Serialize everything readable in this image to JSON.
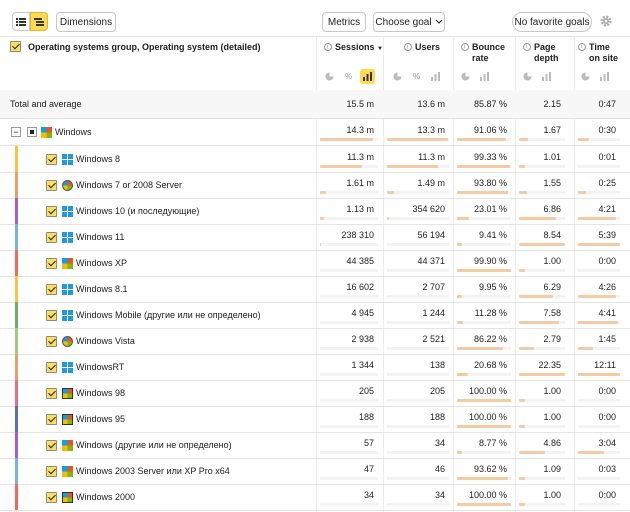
{
  "toolbar": {
    "dimensions_label": "Dimensions",
    "metrics_label": "Metrics",
    "goal_label": "Choose goal",
    "favorite_goals_label": "No favorite goals"
  },
  "header": {
    "title": "Operating systems group, Operating system (detailed)",
    "columns": [
      {
        "line1": "Sessions",
        "line2": "",
        "sorted": "▼"
      },
      {
        "line1": "Users",
        "line2": "",
        "sorted": ""
      },
      {
        "line1": "Bounce",
        "line2": "rate",
        "sorted": ""
      },
      {
        "line1": "Page",
        "line2": "depth",
        "sorted": ""
      },
      {
        "line1": "Time",
        "line2": "on site",
        "sorted": ""
      }
    ]
  },
  "total": {
    "label": "Total and average",
    "values": [
      "15.5 m",
      "13.6 m",
      "85.87 %",
      "2.15",
      "0:47"
    ]
  },
  "group": {
    "label": "Windows",
    "values": [
      "14.3 m",
      "13.3 m",
      "91.06 %",
      "1.67",
      "0:30"
    ],
    "bars": [
      0.92,
      0.98,
      0.91,
      0.2,
      0.25
    ],
    "expander": "−"
  },
  "rows": [
    {
      "label": "Windows 8",
      "icon": "win10",
      "color": "#f6c543",
      "values": [
        "11.3 m",
        "11.3 m",
        "99.33 %",
        "1.01",
        "0:01"
      ],
      "bars": [
        0.73,
        0.83,
        0.99,
        0.12,
        0.01
      ]
    },
    {
      "label": "Windows 7 or 2008 Server",
      "icon": "w7",
      "color": "#e0a36a",
      "values": [
        "1.61 m",
        "1.49 m",
        "93.80 %",
        "1.55",
        "0:25"
      ],
      "bars": [
        0.1,
        0.11,
        0.94,
        0.18,
        0.2
      ]
    },
    {
      "label": "Windows 10 (и последующие)",
      "icon": "win10",
      "color": "#a461c5",
      "values": [
        "1.13 m",
        "354 620",
        "23.01 %",
        "6.86",
        "4:21"
      ],
      "bars": [
        0.07,
        0.03,
        0.23,
        0.8,
        0.9
      ]
    },
    {
      "label": "Windows 11",
      "icon": "win10",
      "color": "#76b4e0",
      "values": [
        "238 310",
        "56 194",
        "9.41 %",
        "8.54",
        "5:39"
      ],
      "bars": [
        0.02,
        0.0,
        0.09,
        0.99,
        1.0
      ]
    },
    {
      "label": "Windows XP",
      "icon": "xp",
      "color": "#ee6a5b",
      "values": [
        "44 385",
        "44 371",
        "99.90 %",
        "1.00",
        "0:00"
      ],
      "bars": [
        0.0,
        0.0,
        1.0,
        0.12,
        0.0
      ]
    },
    {
      "label": "Windows 8.1",
      "icon": "win10",
      "color": "#f6c543",
      "values": [
        "16 602",
        "2 707",
        "9.95 %",
        "6.29",
        "4:26"
      ],
      "bars": [
        0.0,
        0.0,
        0.1,
        0.73,
        0.9
      ]
    },
    {
      "label": "Windows Mobile (другие или не определено)",
      "icon": "win10",
      "color": "#6fae6f",
      "values": [
        "4 945",
        "1 244",
        "11.28 %",
        "7.58",
        "4:41"
      ],
      "bars": [
        0.0,
        0.0,
        0.11,
        0.88,
        0.95
      ]
    },
    {
      "label": "Windows Vista",
      "icon": "w7",
      "color": "#9fcf7a",
      "values": [
        "2 938",
        "2 521",
        "86.22 %",
        "2.79",
        "1:45"
      ],
      "bars": [
        0.0,
        0.0,
        0.86,
        0.32,
        0.35
      ]
    },
    {
      "label": "WindowsRT",
      "icon": "win10",
      "color": "#e0a36a",
      "values": [
        "1 344",
        "138",
        "20.68 %",
        "22.35",
        "12:11"
      ],
      "bars": [
        0.0,
        0.0,
        0.21,
        1.0,
        1.0
      ]
    },
    {
      "label": "Windows 98",
      "icon": "w98",
      "color": "#e36e8a",
      "values": [
        "205",
        "205",
        "100.00 %",
        "1.00",
        "0:00"
      ],
      "bars": [
        0.0,
        0.0,
        1.0,
        0.12,
        0.0
      ]
    },
    {
      "label": "Windows 95",
      "icon": "w98",
      "color": "#5a6fb5",
      "values": [
        "188",
        "188",
        "100.00 %",
        "1.00",
        "0:00"
      ],
      "bars": [
        0.0,
        0.0,
        1.0,
        0.12,
        0.0
      ]
    },
    {
      "label": "Windows (другие или не определено)",
      "icon": "xp",
      "color": "#a461c5",
      "values": [
        "57",
        "34",
        "8.77 %",
        "4.86",
        "3:04"
      ],
      "bars": [
        0.0,
        0.0,
        0.09,
        0.57,
        0.62
      ]
    },
    {
      "label": "Windows 2003 Server или XP Pro x64",
      "icon": "xp",
      "color": "#76b4e0",
      "values": [
        "47",
        "46",
        "93.62 %",
        "1.09",
        "0:03"
      ],
      "bars": [
        0.0,
        0.0,
        0.94,
        0.13,
        0.01
      ]
    },
    {
      "label": "Windows 2000",
      "icon": "w98",
      "color": "#ee6a5b",
      "values": [
        "34",
        "34",
        "100.00 %",
        "1.00",
        "0:00"
      ],
      "bars": [
        0.0,
        0.0,
        1.0,
        0.12,
        0.0
      ]
    }
  ],
  "percent_symbol": "%",
  "settings_icon": "gear-icon"
}
